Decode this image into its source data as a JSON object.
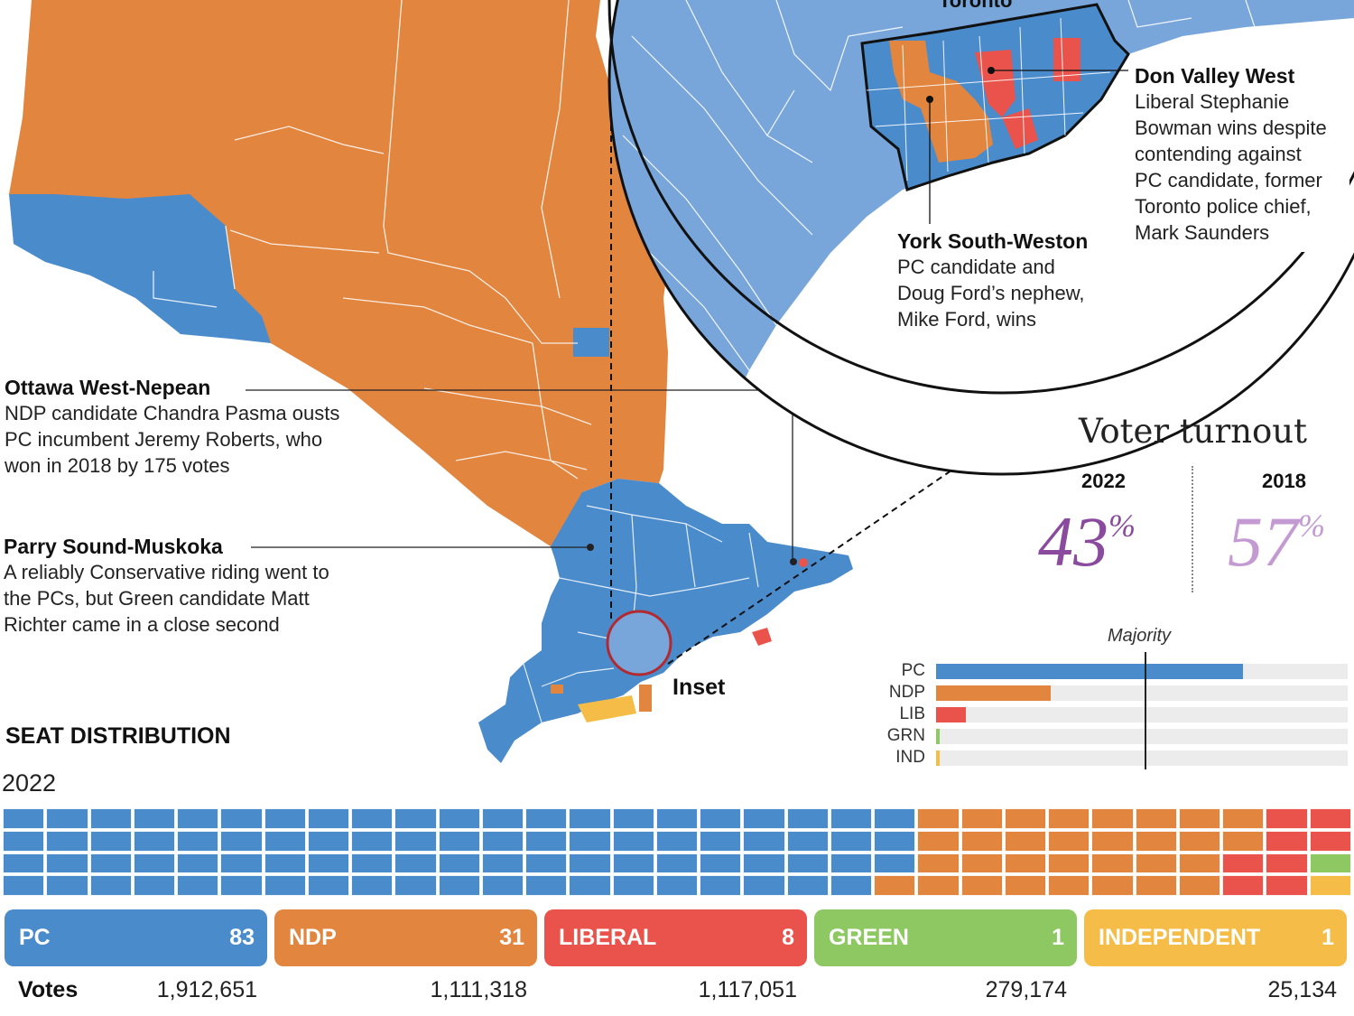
{
  "map": {
    "inset_city_label": "Toronto",
    "inset_label": "Inset",
    "party_colors": {
      "PC": "#4a8bcc",
      "PC_light": "#79a6da",
      "NDP": "#e2853f",
      "LIB": "#e9534b",
      "GRN": "#8dc862",
      "IND": "#f5bd48"
    }
  },
  "annotations": [
    {
      "title": "Don Valley West",
      "body": [
        "Liberal Stephanie",
        "Bowman wins despite",
        "contending against",
        "PC candidate, former",
        "Toronto police chief,",
        "Mark Saunders"
      ]
    },
    {
      "title": "York South-Weston",
      "body": [
        "PC candidate and",
        "Doug Ford’s nephew,",
        "Mike Ford, wins"
      ]
    },
    {
      "title": "Ottawa West-Nepean",
      "body": [
        "NDP candidate Chandra Pasma ousts",
        "PC incumbent Jeremy Roberts, who",
        "won in 2018 by 175 votes"
      ]
    },
    {
      "title": "Parry Sound-Muskoka",
      "body": [
        "A reliably Conservative riding went to",
        "the PCs, but Green candidate Matt",
        "Richter came in a close second"
      ]
    }
  ],
  "turnout": {
    "title": "Voter turnout",
    "years": [
      {
        "year": "2022",
        "value": "43",
        "unit": "%",
        "color": "#8a4a9e"
      },
      {
        "year": "2018",
        "value": "57",
        "unit": "%",
        "color": "#c49ad3"
      }
    ]
  },
  "majority_chart": {
    "majority_label": "Majority",
    "majority_seats": 63,
    "axis_max": 124,
    "bars": [
      {
        "party": "PC",
        "seats": 83,
        "color": "#4a8bcc"
      },
      {
        "party": "NDP",
        "seats": 31,
        "color": "#e2853f"
      },
      {
        "party": "LIB",
        "seats": 8,
        "color": "#e9534b"
      },
      {
        "party": "GRN",
        "seats": 1,
        "color": "#8dc862"
      },
      {
        "party": "IND",
        "seats": 1,
        "color": "#f5bd48"
      }
    ]
  },
  "seat_distribution": {
    "title": "SEAT DISTRIBUTION",
    "year": "2022",
    "parties": [
      {
        "name": "PC",
        "seats": "83",
        "votes": "1,912,651",
        "color": "#4a8bcc"
      },
      {
        "name": "NDP",
        "seats": "31",
        "votes": "1,111,318",
        "color": "#e2853f"
      },
      {
        "name": "LIBERAL",
        "seats": "8",
        "votes": "1,117,051",
        "color": "#e9534b"
      },
      {
        "name": "GREEN",
        "seats": "1",
        "votes": "279,174",
        "color": "#8dc862"
      },
      {
        "name": "INDEPENDENT",
        "seats": "1",
        "votes": "25,134",
        "color": "#f5bd48"
      }
    ],
    "votes_label": "Votes"
  }
}
